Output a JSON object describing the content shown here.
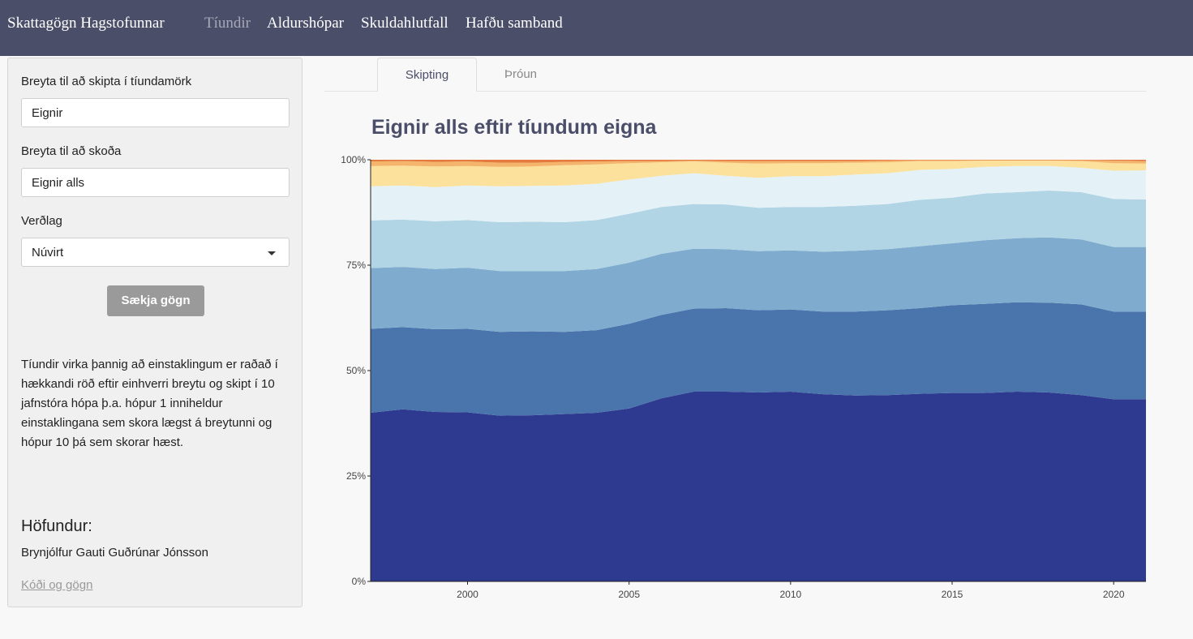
{
  "navbar": {
    "brand": "Skattagögn Hagstofunnar",
    "items": [
      {
        "label": "Tíundir",
        "active": true
      },
      {
        "label": "Aldurshópar",
        "active": false
      },
      {
        "label": "Skuldahlutfall",
        "active": false
      },
      {
        "label": "Hafðu samband",
        "active": false
      }
    ],
    "bg_color": "#4a4e69"
  },
  "sidebar": {
    "decile_var": {
      "label": "Breyta til að skipta í tíundamörk",
      "value": "Eignir"
    },
    "view_var": {
      "label": "Breyta til að skoða",
      "value": "Eignir alls"
    },
    "price_level": {
      "label": "Verðlag",
      "value": "Núvirt"
    },
    "fetch_button": "Sækja gögn",
    "description": "Tíundir virka þannig að einstaklingum er raðað í hækkandi röð eftir einhverri breytu og skipt í 10 jafnstóra hópa þ.a. hópur 1 inniheldur einstaklingana sem skora lægst á breytunni og hópur 10 þá sem skorar hæst.",
    "author_heading": "Höfundur:",
    "author_name": "Brynjólfur Gauti Guðrúnar Jónsson",
    "code_link": "Kóði og gögn"
  },
  "tabs": [
    {
      "label": "Skipting",
      "active": true
    },
    {
      "label": "Þróun",
      "active": false
    }
  ],
  "chart_data": {
    "type": "area",
    "stacked": "percent",
    "title": "Eignir alls eftir tíundum eigna",
    "xlabel": "",
    "ylabel": "",
    "xlim": [
      1997,
      2021
    ],
    "ylim": [
      0,
      1
    ],
    "x_ticks": [
      2000,
      2005,
      2010,
      2015,
      2020
    ],
    "y_ticks": [
      "0%",
      "25%",
      "50%",
      "75%",
      "100%"
    ],
    "x": [
      1997,
      1998,
      1999,
      2000,
      2001,
      2002,
      2003,
      2004,
      2005,
      2006,
      2007,
      2008,
      2009,
      2010,
      2011,
      2012,
      2013,
      2014,
      2015,
      2016,
      2017,
      2018,
      2019,
      2020,
      2021
    ],
    "series": [
      {
        "color": "#2e3990",
        "values": [
          0.4,
          0.408,
          0.402,
          0.401,
          0.393,
          0.394,
          0.397,
          0.4,
          0.41,
          0.434,
          0.45,
          0.45,
          0.448,
          0.45,
          0.444,
          0.441,
          0.442,
          0.445,
          0.447,
          0.447,
          0.45,
          0.448,
          0.442,
          0.432,
          0.432
        ]
      },
      {
        "color": "#4a74ac",
        "values": [
          0.199,
          0.195,
          0.196,
          0.198,
          0.199,
          0.199,
          0.195,
          0.196,
          0.201,
          0.198,
          0.197,
          0.198,
          0.195,
          0.195,
          0.196,
          0.199,
          0.201,
          0.203,
          0.208,
          0.211,
          0.212,
          0.213,
          0.215,
          0.208,
          0.208
        ]
      },
      {
        "color": "#7facce",
        "values": [
          0.144,
          0.143,
          0.143,
          0.145,
          0.144,
          0.143,
          0.144,
          0.145,
          0.145,
          0.145,
          0.142,
          0.14,
          0.14,
          0.14,
          0.142,
          0.144,
          0.145,
          0.147,
          0.147,
          0.151,
          0.152,
          0.155,
          0.154,
          0.153,
          0.153
        ]
      },
      {
        "color": "#b2d5e6",
        "values": [
          0.113,
          0.112,
          0.113,
          0.113,
          0.116,
          0.117,
          0.116,
          0.116,
          0.116,
          0.111,
          0.106,
          0.106,
          0.103,
          0.103,
          0.106,
          0.107,
          0.107,
          0.11,
          0.108,
          0.111,
          0.109,
          0.111,
          0.112,
          0.114,
          0.113
        ]
      },
      {
        "color": "#e4f2f8",
        "values": [
          0.081,
          0.081,
          0.081,
          0.082,
          0.085,
          0.085,
          0.087,
          0.086,
          0.081,
          0.074,
          0.073,
          0.068,
          0.071,
          0.073,
          0.073,
          0.074,
          0.073,
          0.071,
          0.068,
          0.063,
          0.062,
          0.058,
          0.058,
          0.067,
          0.069
        ]
      },
      {
        "color": "#fce19c",
        "values": [
          0.048,
          0.047,
          0.049,
          0.046,
          0.046,
          0.046,
          0.048,
          0.046,
          0.039,
          0.032,
          0.028,
          0.031,
          0.034,
          0.031,
          0.031,
          0.028,
          0.026,
          0.021,
          0.019,
          0.015,
          0.013,
          0.013,
          0.016,
          0.018,
          0.016
        ]
      },
      {
        "color": "#f4b46c",
        "values": [
          0.011,
          0.011,
          0.011,
          0.011,
          0.01,
          0.009,
          0.008,
          0.007,
          0.005,
          0.003,
          0.002,
          0.004,
          0.006,
          0.005,
          0.005,
          0.004,
          0.004,
          0.002,
          0.002,
          0.001,
          0.001,
          0.001,
          0.002,
          0.006,
          0.006
        ]
      },
      {
        "color": "#e47a3c",
        "values": [
          0.004,
          0.003,
          0.005,
          0.004,
          0.007,
          0.007,
          0.005,
          0.004,
          0.003,
          0.003,
          0.002,
          0.003,
          0.003,
          0.003,
          0.003,
          0.003,
          0.002,
          0.001,
          0.001,
          0.001,
          0.001,
          0.001,
          0.001,
          0.002,
          0.003
        ]
      }
    ]
  }
}
